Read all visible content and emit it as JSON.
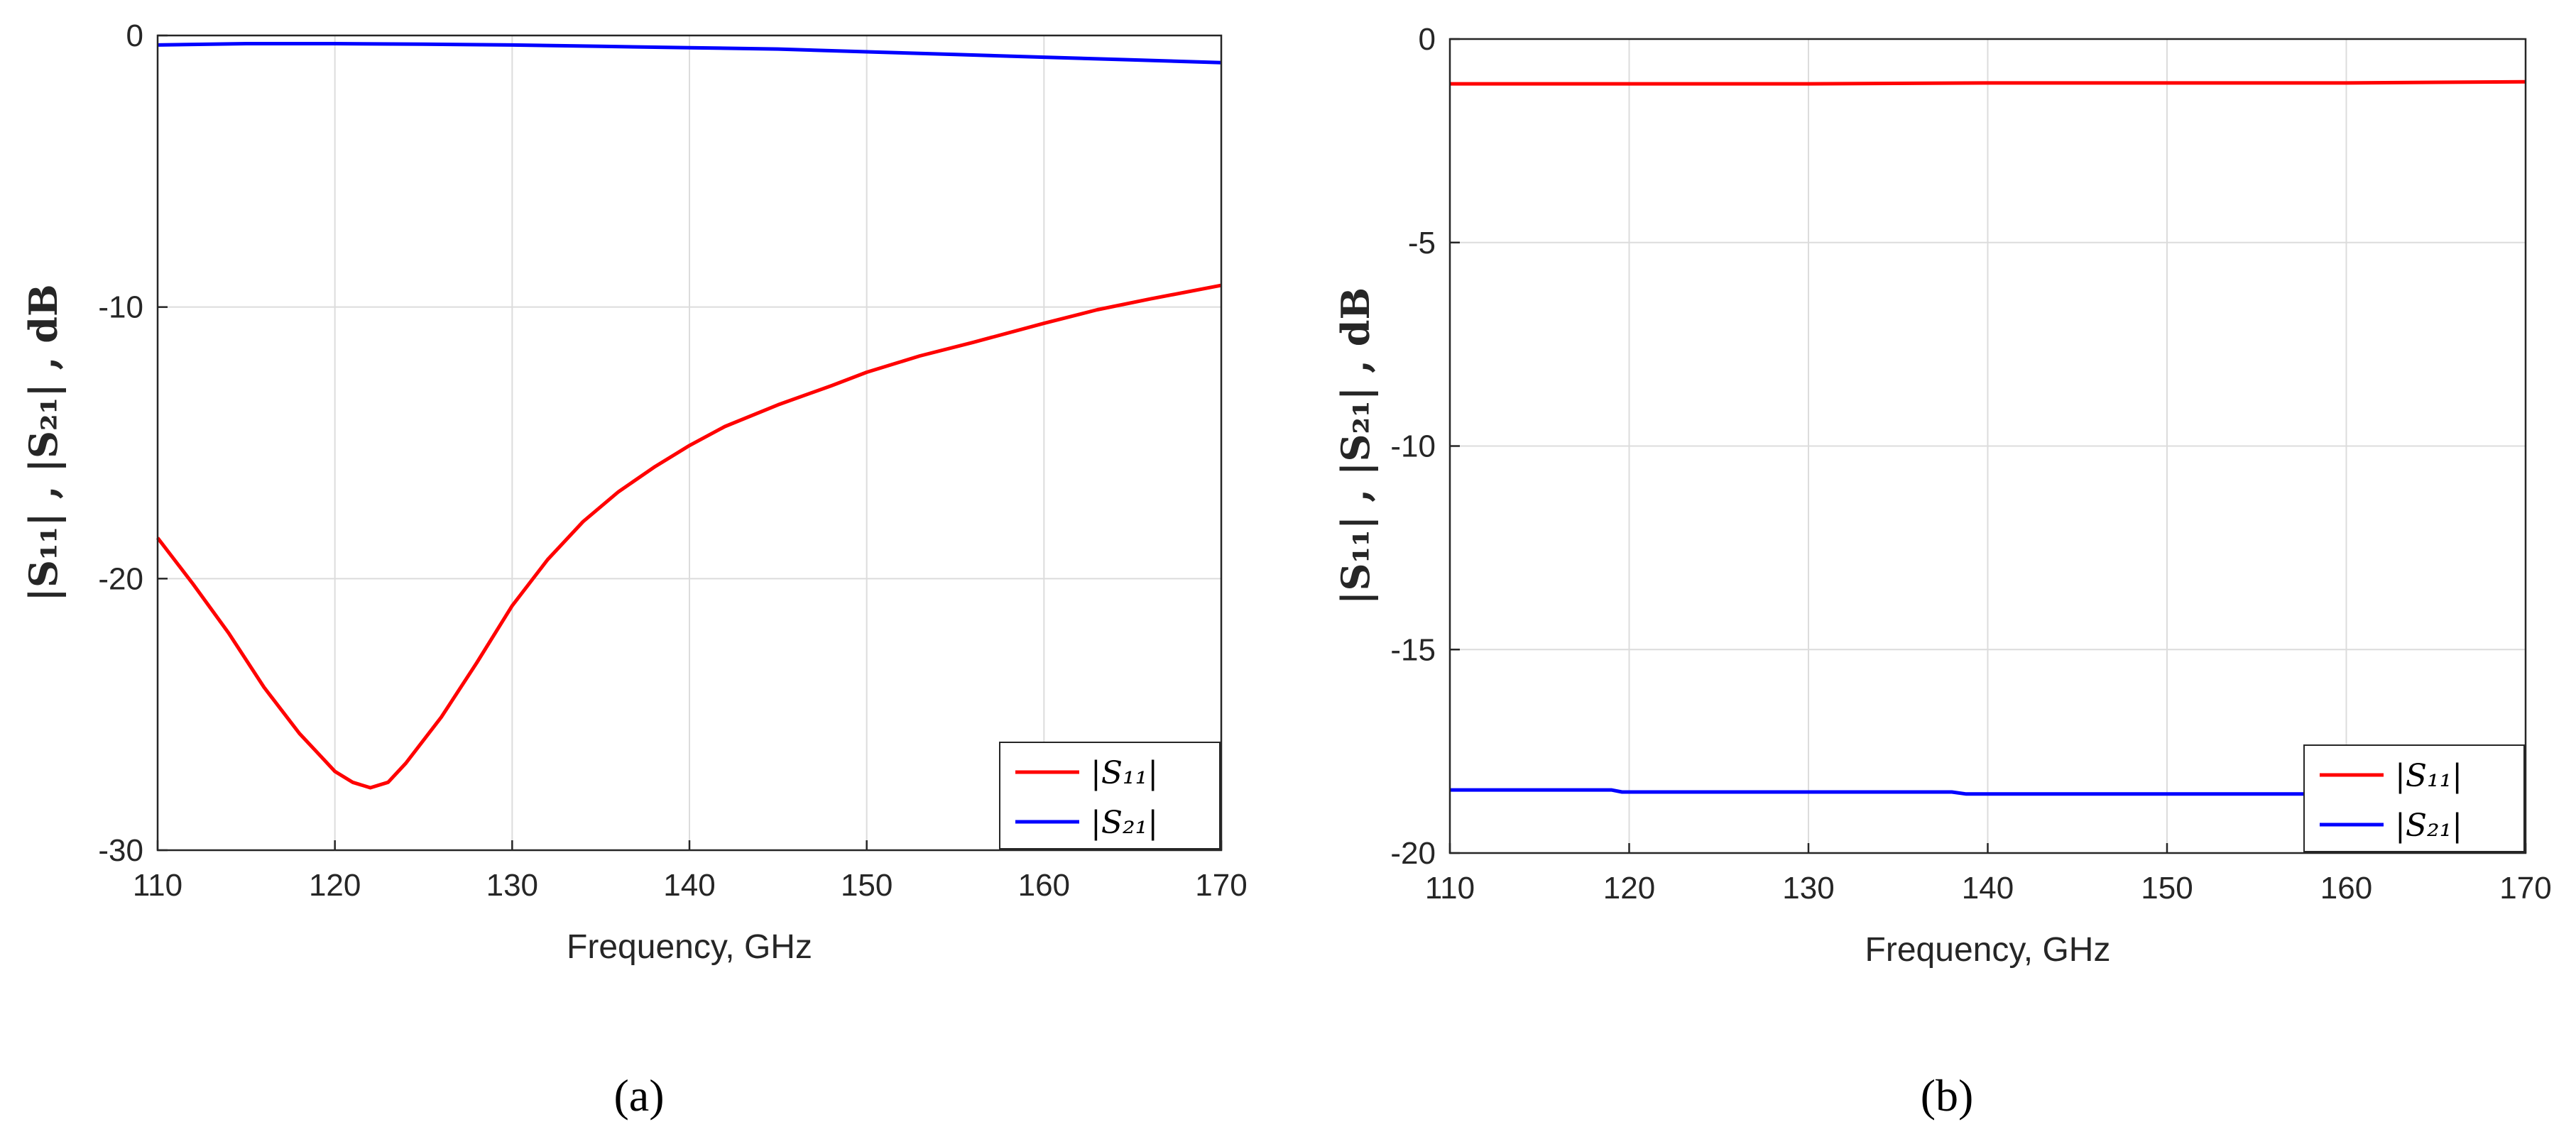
{
  "chart_data": [
    {
      "type": "line",
      "panel_label": "(a)",
      "xlabel": "Frequency, GHz",
      "ylabel": "|S₁₁| ,  |S₂₁| ,  dB",
      "xlim": [
        110,
        170
      ],
      "ylim": [
        -30,
        0
      ],
      "xticks": [
        110,
        120,
        130,
        140,
        150,
        160,
        170
      ],
      "yticks": [
        0,
        -10,
        -20,
        -30
      ],
      "grid": true,
      "legend_position": "bottom-right",
      "series": [
        {
          "name": "|S₁₁|",
          "color": "#ff0000",
          "x": [
            110,
            112,
            114,
            116,
            118,
            119,
            120,
            121,
            122,
            123,
            124,
            126,
            128,
            130,
            132,
            134,
            136,
            138,
            140,
            142,
            145,
            148,
            150,
            153,
            156,
            160,
            163,
            166,
            170
          ],
          "y": [
            -18.5,
            -20.2,
            -22.0,
            -24.0,
            -25.7,
            -26.4,
            -27.1,
            -27.5,
            -27.7,
            -27.5,
            -26.8,
            -25.1,
            -23.1,
            -21.0,
            -19.3,
            -17.9,
            -16.8,
            -15.9,
            -15.1,
            -14.4,
            -13.6,
            -12.9,
            -12.4,
            -11.8,
            -11.3,
            -10.6,
            -10.1,
            -9.7,
            -9.2
          ]
        },
        {
          "name": "|S₂₁|",
          "color": "#0000ff",
          "x": [
            110,
            115,
            120,
            125,
            130,
            135,
            140,
            145,
            150,
            155,
            160,
            165,
            170
          ],
          "y": [
            -0.35,
            -0.3,
            -0.3,
            -0.32,
            -0.35,
            -0.4,
            -0.45,
            -0.5,
            -0.6,
            -0.7,
            -0.8,
            -0.9,
            -1.0
          ]
        }
      ]
    },
    {
      "type": "line",
      "panel_label": "(b)",
      "xlabel": "Frequency, GHz",
      "ylabel": "|S₁₁| ,  |S₂₁| ,  dB",
      "xlim": [
        110,
        170
      ],
      "ylim": [
        -20,
        0
      ],
      "xticks": [
        110,
        120,
        130,
        140,
        150,
        160,
        170
      ],
      "yticks": [
        0,
        -5,
        -10,
        -15,
        -20
      ],
      "grid": true,
      "legend_position": "bottom-right",
      "series": [
        {
          "name": "|S₁₁|",
          "color": "#ff0000",
          "x": [
            110,
            120,
            130,
            140,
            150,
            160,
            170
          ],
          "y": [
            -1.1,
            -1.1,
            -1.1,
            -1.08,
            -1.08,
            -1.08,
            -1.05
          ]
        },
        {
          "name": "|S₂₁|",
          "color": "#0000ff",
          "x": [
            110,
            119,
            119.6,
            138,
            138.8,
            160,
            161
          ],
          "y": [
            -18.45,
            -18.45,
            -18.5,
            -18.5,
            -18.55,
            -18.55,
            -18.55
          ]
        }
      ]
    }
  ]
}
